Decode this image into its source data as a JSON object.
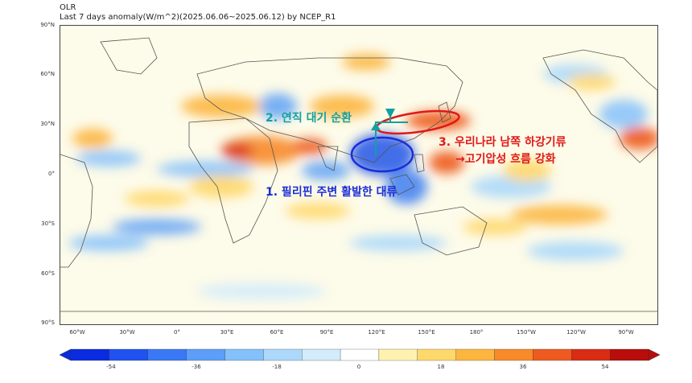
{
  "header": {
    "variable": "OLR",
    "subtitle": "Last 7 days anomaly(W/m^2)(2025.06.06~2025.06.12) by NCEP_R1"
  },
  "lat_labels": [
    "90°N",
    "60°N",
    "30°N",
    "0°",
    "30°S",
    "60°S",
    "90°S"
  ],
  "lon_labels": [
    "60°W",
    "30°W",
    "0°",
    "30°E",
    "60°E",
    "90°E",
    "120°E",
    "150°E",
    "180°",
    "150°W",
    "120°W",
    "90°W"
  ],
  "colorbar": {
    "ticks": [
      "-54",
      "-36",
      "-18",
      "0",
      "18",
      "36",
      "54"
    ],
    "colors": [
      "#0a2be0",
      "#1f52ef",
      "#3a78f5",
      "#5c9ef8",
      "#84c1fb",
      "#acd9fb",
      "#d3ecfb",
      "#ffffff",
      "#fff2b0",
      "#fed86c",
      "#fcb63f",
      "#f88a2a",
      "#ee5a1f",
      "#d92c15",
      "#b80d0a"
    ],
    "land_outline": "#555555",
    "ocean": "#fdfbe9"
  },
  "annotations": {
    "circulation": {
      "text": "2. 연직 대기 순환",
      "color": "#12a0a0"
    },
    "convection": {
      "text": "1. 필리핀 주변 활발한 대류",
      "color": "#1c2dd6"
    },
    "descent_line1": {
      "text": "3. 우리나라 남쪽 하강기류",
      "color": "#e01818"
    },
    "descent_line2": {
      "text": "→고기압성 흐름 강화",
      "color": "#e01818"
    }
  }
}
